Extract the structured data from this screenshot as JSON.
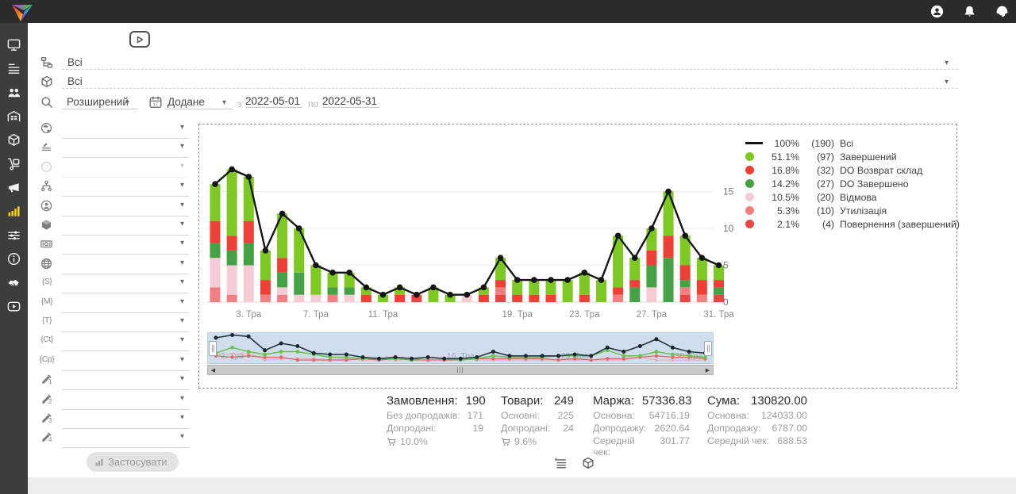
{
  "topbar": {
    "logo_icon": "brand-triangle-logo",
    "icons": [
      {
        "name": "user-icon"
      },
      {
        "name": "bell-icon"
      },
      {
        "name": "support-headset-icon"
      }
    ]
  },
  "sidebar": {
    "items": [
      {
        "icon": "monitor-icon",
        "active": false
      },
      {
        "icon": "list-rows-icon",
        "active": false
      },
      {
        "icon": "users-icon",
        "active": false
      },
      {
        "icon": "warehouse-icon",
        "active": false
      },
      {
        "icon": "package-icon",
        "active": false
      },
      {
        "icon": "trolley-icon",
        "active": false
      },
      {
        "icon": "megaphone-icon",
        "active": false
      },
      {
        "icon": "bar-chart-icon",
        "active": true
      },
      {
        "icon": "sliders-icon",
        "active": false
      },
      {
        "icon": "info-icon",
        "active": false
      },
      {
        "icon": "handshake-icon",
        "active": false
      },
      {
        "icon": "video-icon",
        "active": false
      }
    ],
    "active_color": "#ffd60a"
  },
  "toolbar": {
    "video_button_icon": "play-icon"
  },
  "filters": {
    "source": {
      "icon": "tree-icon",
      "value": "Всі"
    },
    "product": {
      "icon": "package-outline-icon",
      "value": "Всі"
    },
    "mode": {
      "icon": "search-icon",
      "value": "Розширений"
    },
    "date": {
      "icon": "calendar-icon",
      "calendar_day": "17",
      "field": "Додане",
      "from_label": "з",
      "from": "2022-05-01",
      "to_label": "по",
      "to": "2022-05-31"
    },
    "rows": [
      {
        "icon": "globe-earth-icon",
        "disabled": false
      },
      {
        "icon": "filter-lines-icon",
        "disabled": false
      },
      {
        "icon": "question-icon",
        "disabled": true
      },
      {
        "icon": "hierarchy-icon",
        "disabled": false
      },
      {
        "icon": "person-circle-icon",
        "disabled": false
      },
      {
        "icon": "cube-filled-icon",
        "disabled": false
      },
      {
        "icon": "banknote-icon",
        "disabled": false
      },
      {
        "icon": "globe-wire-icon",
        "disabled": false
      },
      {
        "icon": "tag-icon",
        "tag": "{S}",
        "disabled": false
      },
      {
        "icon": "tag-icon",
        "tag": "{M}",
        "disabled": false
      },
      {
        "icon": "tag-icon",
        "tag": "{T}",
        "disabled": false
      },
      {
        "icon": "tag-icon",
        "tag": "{Ct}",
        "disabled": false
      },
      {
        "icon": "tag-icon",
        "tag": "{Cp}",
        "disabled": false
      },
      {
        "icon": "pencil-icon",
        "sub": "1",
        "disabled": false
      },
      {
        "icon": "pencil-icon",
        "sub": "2",
        "disabled": false
      },
      {
        "icon": "pencil-icon",
        "sub": "3",
        "disabled": false
      },
      {
        "icon": "pencil-icon",
        "sub": "4",
        "disabled": false
      }
    ],
    "apply_label": "Застосувати",
    "apply_icon": "mini-bars-icon"
  },
  "chart_data": {
    "type": "bar",
    "stacked": true,
    "categories": [
      "1. Тра",
      "2. Тра",
      "3. Тра",
      "4. Тра",
      "5. Тра",
      "6. Тра",
      "7. Тра",
      "8. Тра",
      "9. Тра",
      "10. Тра",
      "11. Тра",
      "12. Тра",
      "13. Тра",
      "14. Тра",
      "15. Тра",
      "16. Тра",
      "17. Тра",
      "18. Тра",
      "19. Тра",
      "20. Тра",
      "21. Тра",
      "22. Тра",
      "23. Тра",
      "24. Тра",
      "25. Тра",
      "26. Тра",
      "27. Тра",
      "28. Тра",
      "29. Тра",
      "30. Тра",
      "31. Тра"
    ],
    "visible_x_ticks": [
      "3. Тра",
      "7. Тра",
      "11. Тра",
      "19. Тра",
      "23. Тра",
      "27. Тра",
      "31. Тра"
    ],
    "series": [
      {
        "name": "Повернення (завершений)",
        "color": "#e94545",
        "values": [
          0,
          0,
          0,
          0,
          0,
          0,
          0,
          0,
          0,
          0,
          0,
          0,
          1,
          0,
          0,
          0,
          0,
          1,
          0,
          0,
          0,
          0,
          0,
          0,
          0,
          0,
          0,
          0,
          1,
          0,
          1
        ]
      },
      {
        "name": "Утилізація",
        "color": "#f27e81",
        "values": [
          2,
          1,
          0,
          1,
          1,
          0,
          0,
          1,
          0,
          0,
          0,
          0,
          0,
          0,
          0,
          0,
          0,
          1,
          0,
          0,
          0,
          0,
          0,
          0,
          1,
          0,
          0,
          0,
          1,
          1,
          0
        ]
      },
      {
        "name": "Відмова",
        "color": "#f6ccd4",
        "values": [
          4,
          4,
          5,
          0,
          1,
          1,
          1,
          0,
          1,
          0,
          0,
          0,
          0,
          0,
          0,
          1,
          0,
          0,
          0,
          0,
          0,
          0,
          0,
          0,
          0,
          0,
          2,
          0,
          0,
          0,
          0
        ]
      },
      {
        "name": "DO Завершено",
        "color": "#44a244",
        "values": [
          2,
          2,
          3,
          0,
          2,
          3,
          0,
          1,
          1,
          0,
          0,
          0,
          0,
          0,
          0,
          0,
          0,
          0,
          0,
          0,
          0,
          0,
          0,
          0,
          0,
          2,
          3,
          6,
          1,
          0,
          1
        ]
      },
      {
        "name": "DO Возврат склад",
        "color": "#ee4035",
        "values": [
          3,
          2,
          3,
          2,
          2,
          0,
          0,
          0,
          0,
          1,
          0,
          1,
          0,
          0,
          0,
          0,
          1,
          1,
          1,
          1,
          1,
          0,
          1,
          0,
          1,
          1,
          2,
          3,
          2,
          2,
          1
        ]
      },
      {
        "name": "Завершений",
        "color": "#7dc822",
        "values": [
          5,
          9,
          6,
          4,
          6,
          6,
          4,
          2,
          2,
          1,
          1,
          1,
          0,
          2,
          1,
          0,
          1,
          3,
          2,
          2,
          2,
          3,
          3,
          3,
          7,
          3,
          3,
          6,
          4,
          3,
          2
        ]
      }
    ],
    "line_overlay": {
      "name": "Всі",
      "color": "#141414",
      "values": [
        16,
        18,
        17,
        7,
        12,
        10,
        5,
        4,
        4,
        2,
        1,
        2,
        1,
        2,
        1,
        1,
        2,
        6,
        3,
        3,
        3,
        3,
        4,
        3,
        9,
        6,
        10,
        15,
        9,
        6,
        5
      ]
    },
    "y_ticks": [
      0,
      5,
      10,
      15
    ],
    "ylim": [
      0,
      18
    ],
    "grid": true,
    "legend_position": "right"
  },
  "legend": {
    "items": [
      {
        "marker": "line",
        "color": "#141414",
        "pct": "100%",
        "count": "(190)",
        "label": "Всі"
      },
      {
        "marker": "dot",
        "color": "#7dc822",
        "pct": "51.1%",
        "count": "(97)",
        "label": "Завершений"
      },
      {
        "marker": "dot",
        "color": "#ee4035",
        "pct": "16.8%",
        "count": "(32)",
        "label": "DO Возврат склад"
      },
      {
        "marker": "dot",
        "color": "#44a244",
        "pct": "14.2%",
        "count": "(27)",
        "label": "DO Завершено"
      },
      {
        "marker": "dot",
        "color": "#f6ccd4",
        "pct": "10.5%",
        "count": "(20)",
        "label": "Відмова"
      },
      {
        "marker": "dot",
        "color": "#f27e81",
        "pct": "5.3%",
        "count": "(10)",
        "label": "Утилізація"
      },
      {
        "marker": "dot",
        "color": "#e94545",
        "pct": "2.1%",
        "count": "(4)",
        "label": "Повернення (завершений)"
      }
    ]
  },
  "navigator": {
    "background": "#cfdeed",
    "labels": [
      {
        "text": "2. Тра",
        "day": 2
      },
      {
        "text": "16. Тра",
        "day": 16
      },
      {
        "text": "23. Тра",
        "day": 23
      },
      {
        "text": "30. Тра",
        "day": 30
      }
    ],
    "scrollbar": {
      "left_arrow": "◀",
      "right_arrow": "▶",
      "grip": "|||"
    }
  },
  "stats": {
    "columns": [
      {
        "title": "Замовлення:",
        "value": "190",
        "rows": [
          {
            "label": "Без допродажів:",
            "value": "171"
          },
          {
            "label": "Допродані:",
            "value": "19"
          }
        ],
        "cart_pct": "10.0%"
      },
      {
        "title": "Товари:",
        "value": "249",
        "rows": [
          {
            "label": "Основні:",
            "value": "225"
          },
          {
            "label": "Допродані:",
            "value": "24"
          }
        ],
        "cart_pct": "9.6%"
      },
      {
        "title": "Маржа:",
        "value": "57336.83",
        "rows": [
          {
            "label": "Основна:",
            "value": "54716.19"
          },
          {
            "label": "Допродажу:",
            "value": "2620.64"
          },
          {
            "label": "Середній чек:",
            "value": "301.77"
          }
        ]
      },
      {
        "title": "Сума:",
        "value": "130820.00",
        "rows": [
          {
            "label": "Основна:",
            "value": "124033.00"
          },
          {
            "label": "Допродажу:",
            "value": "6787.00"
          },
          {
            "label": "Середній чек:",
            "value": "688.53"
          }
        ]
      }
    ],
    "cart_icon": "cart-icon"
  },
  "footer": {
    "icons": [
      {
        "name": "playlist-icon"
      },
      {
        "name": "cube-outline-icon"
      }
    ]
  },
  "colors": {
    "topbar_bg": "#2b2b2b",
    "sidebar_bg": "#3d3d3d",
    "sidebar_active": "#ffd60a",
    "line": "#141414",
    "completed_green": "#7dc822",
    "return_stock_red": "#ee4035",
    "do_done_green": "#44a244",
    "refuse_pink": "#f6ccd4",
    "utilization_salmon": "#f27e81",
    "return_done_red": "#e94545",
    "navigator_bg": "#cfdeed"
  }
}
